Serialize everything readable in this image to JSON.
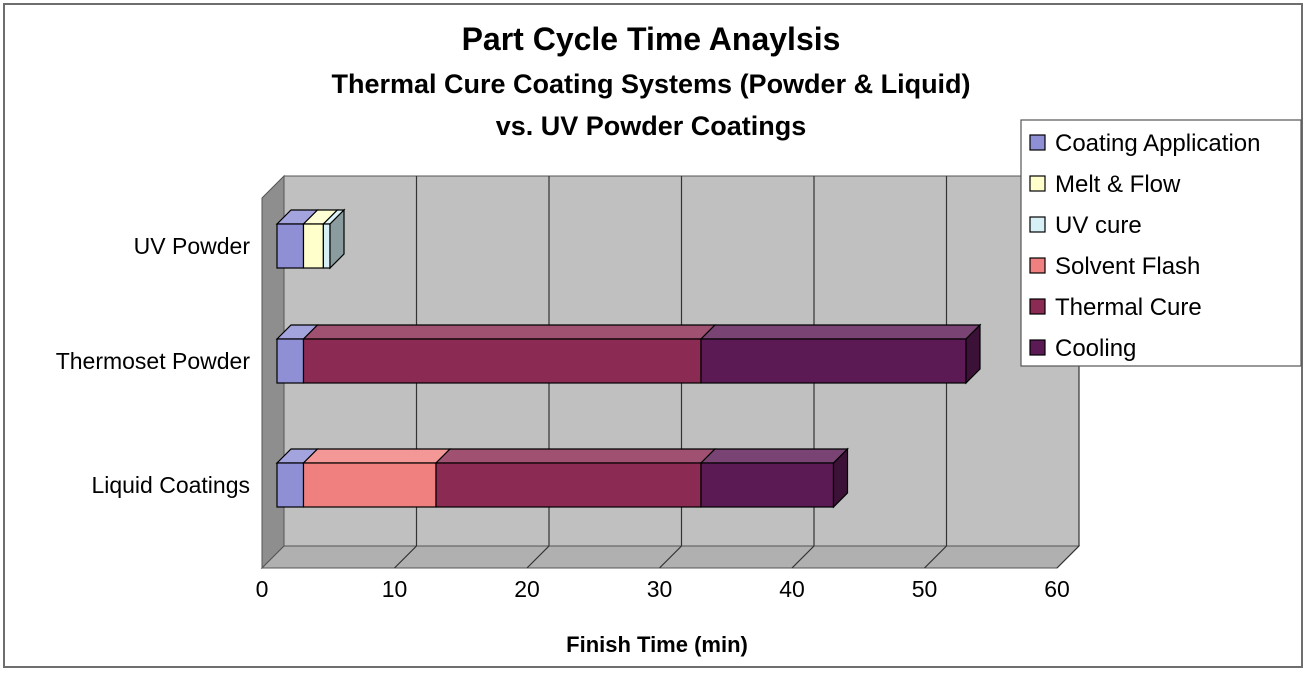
{
  "chart_data": {
    "type": "bar",
    "orientation": "horizontal",
    "stacked": true,
    "three_d": true,
    "title": "Part Cycle Time Anaylsis",
    "subtitle_lines": [
      "Thermal Cure Coating Systems (Powder & Liquid)",
      "vs. UV Powder Coatings"
    ],
    "xlabel": "Finish Time (min)",
    "ylabel": "",
    "xlim": [
      0,
      60
    ],
    "x_ticks": [
      "0",
      "10",
      "20",
      "30",
      "40",
      "50",
      "60"
    ],
    "grid": true,
    "legend_position": "top-right",
    "categories": [
      "UV Powder",
      "Thermoset Powder",
      "Liquid Coatings"
    ],
    "series": [
      {
        "name": "Coating Application",
        "color": "#8f8fd6",
        "values": [
          2,
          2,
          2
        ]
      },
      {
        "name": "Melt & Flow",
        "color": "#ffffcc",
        "values": [
          1.5,
          0,
          0
        ]
      },
      {
        "name": "UV cure",
        "color": "#d6f0f5",
        "values": [
          0.5,
          0,
          0
        ]
      },
      {
        "name": "Solvent Flash",
        "color": "#f08080",
        "values": [
          0,
          0,
          10
        ]
      },
      {
        "name": "Thermal Cure",
        "color": "#8b2a52",
        "values": [
          0,
          30,
          20
        ]
      },
      {
        "name": "Cooling",
        "color": "#5c1a54",
        "values": [
          0,
          20,
          10
        ]
      }
    ]
  }
}
